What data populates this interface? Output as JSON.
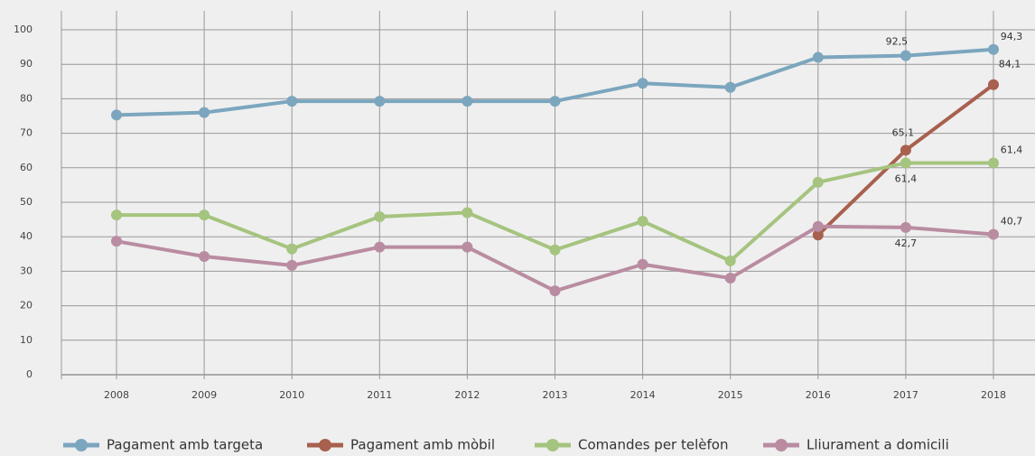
{
  "chart_data": {
    "type": "line",
    "categories": [
      "2008",
      "2009",
      "2010",
      "2011",
      "2012",
      "2013",
      "2014",
      "2015",
      "2016",
      "2017",
      "2018"
    ],
    "ylim": [
      0,
      100
    ],
    "yticks": [
      0,
      10,
      20,
      30,
      40,
      50,
      60,
      70,
      80,
      90,
      100
    ],
    "grid": true,
    "legend": "bottom",
    "series": [
      {
        "name": "Pagament amb targeta",
        "color": "#7ba6be",
        "values": [
          75.3,
          76,
          79.3,
          79.3,
          79.3,
          79.3,
          84.5,
          83.3,
          92,
          92.5,
          94.3
        ],
        "value_labels": [
          null,
          null,
          null,
          null,
          null,
          null,
          null,
          null,
          null,
          "92,5",
          "94,3"
        ]
      },
      {
        "name": "Pagament amb mòbil",
        "color": "#a8604f",
        "values": [
          null,
          null,
          null,
          null,
          null,
          null,
          null,
          null,
          40.5,
          65.1,
          84.1
        ],
        "value_labels": [
          null,
          null,
          null,
          null,
          null,
          null,
          null,
          null,
          null,
          "65,1",
          "84,1"
        ]
      },
      {
        "name": "Comandes per telèfon",
        "color": "#a5c47f",
        "values": [
          46.3,
          46.3,
          36.5,
          45.8,
          47,
          36.2,
          44.5,
          33,
          55.8,
          61.4,
          61.4
        ],
        "value_labels": [
          null,
          null,
          null,
          null,
          null,
          null,
          null,
          null,
          null,
          "61,4",
          "61,4"
        ]
      },
      {
        "name": "Lliurament a domicili",
        "color": "#b98ca1",
        "values": [
          38.7,
          34.3,
          31.7,
          37,
          37,
          24.3,
          32,
          28,
          43,
          42.7,
          40.7
        ],
        "value_labels": [
          null,
          null,
          null,
          null,
          null,
          null,
          null,
          null,
          null,
          "42,7",
          "40,7"
        ]
      }
    ]
  }
}
